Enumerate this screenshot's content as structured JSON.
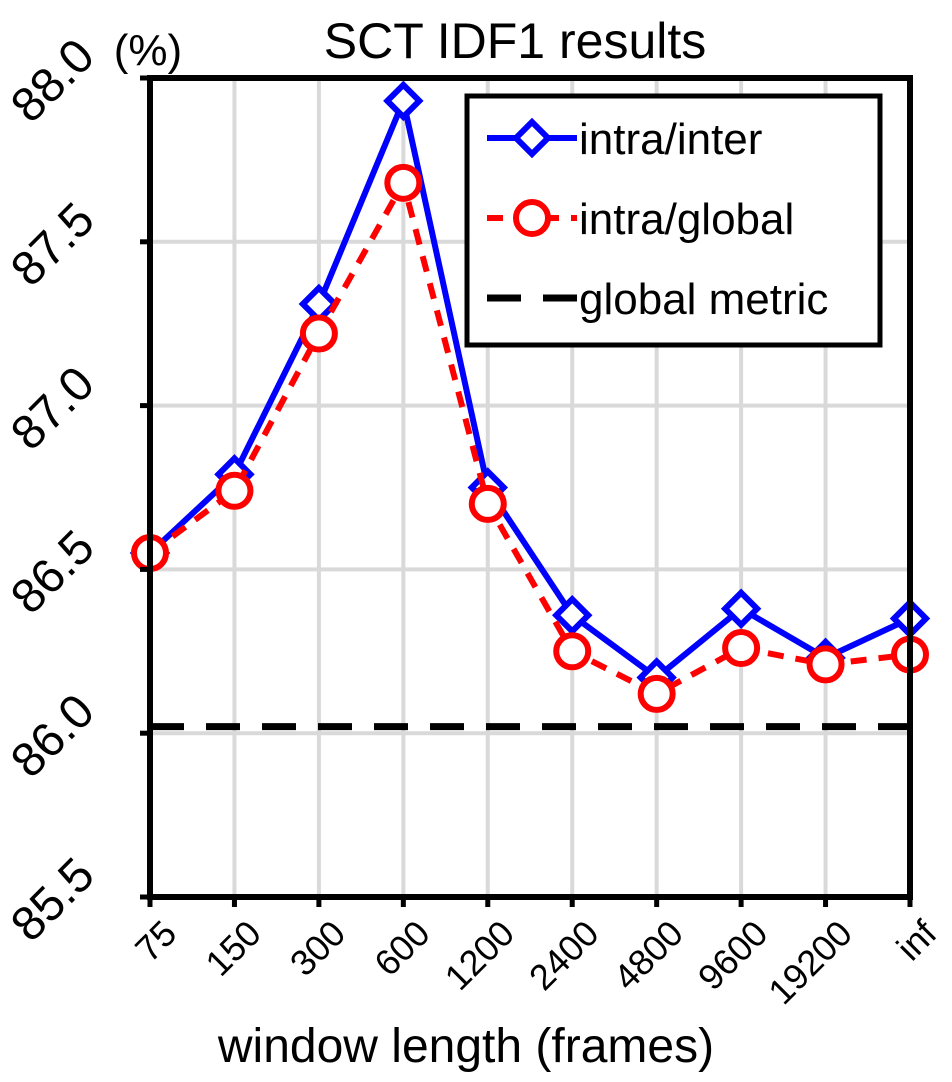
{
  "chart_data": {
    "type": "line",
    "title": "SCT IDF1 results",
    "unit_label": "(%)",
    "xlabel": "window length (frames)",
    "ylabel": "",
    "categories": [
      "75",
      "150",
      "300",
      "600",
      "1200",
      "2400",
      "4800",
      "9600",
      "19200",
      "inf"
    ],
    "ylim": [
      85.5,
      88.0
    ],
    "yticks": [
      "85.5",
      "86.0",
      "86.5",
      "87.0",
      "87.5",
      "88.0"
    ],
    "grid": true,
    "legend_position": "top-right",
    "series": [
      {
        "name": "intra/inter",
        "color": "#0000ff",
        "style": "solid",
        "marker": "diamond",
        "values": [
          86.55,
          86.79,
          87.31,
          87.93,
          86.75,
          86.36,
          86.17,
          86.38,
          86.23,
          86.35
        ]
      },
      {
        "name": "intra/global",
        "color": "#ff0000",
        "style": "dashed",
        "marker": "circle",
        "values": [
          86.55,
          86.74,
          87.22,
          87.68,
          86.7,
          86.25,
          86.12,
          86.26,
          86.21,
          86.24
        ]
      },
      {
        "name": "global metric",
        "color": "#000000",
        "style": "dashed",
        "marker": "none",
        "values": [
          86.02,
          86.02,
          86.02,
          86.02,
          86.02,
          86.02,
          86.02,
          86.02,
          86.02,
          86.02
        ]
      }
    ]
  }
}
